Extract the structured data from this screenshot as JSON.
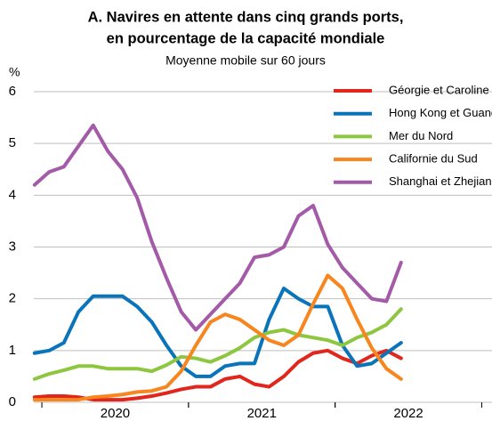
{
  "chart_data": {
    "type": "line",
    "title": [
      "A. Navires en attente dans cinq grands ports,",
      "en pourcentage de la capacité mondiale"
    ],
    "subtitle": "Moyenne mobile sur 60 jours",
    "y_label": "%",
    "x": [
      2019.95,
      2020.05,
      2020.15,
      2020.25,
      2020.35,
      2020.45,
      2020.55,
      2020.65,
      2020.75,
      2020.85,
      2020.95,
      2021.05,
      2021.15,
      2021.25,
      2021.35,
      2021.45,
      2021.55,
      2021.65,
      2021.75,
      2021.85,
      2021.95,
      2022.05,
      2022.15,
      2022.25,
      2022.35,
      2022.45
    ],
    "xlim": [
      2019.945,
      2023.07
    ],
    "xticks": [
      {
        "value": 2020,
        "label": "2020"
      },
      {
        "value": 2021,
        "label": "2021"
      },
      {
        "value": 2022,
        "label": "2022"
      }
    ],
    "ylim": [
      0,
      6
    ],
    "yticks": [
      0,
      1,
      2,
      3,
      4,
      5,
      6
    ],
    "grid": true,
    "legend": "upper right",
    "series": [
      {
        "name": "Géorgie et Caroline du Sud",
        "color": "#e1261c",
        "values": [
          0.1,
          0.12,
          0.12,
          0.1,
          0.05,
          0.05,
          0.05,
          0.08,
          0.12,
          0.18,
          0.25,
          0.3,
          0.3,
          0.45,
          0.5,
          0.35,
          0.3,
          0.5,
          0.78,
          0.95,
          1.0,
          0.85,
          0.75,
          0.9,
          1.0,
          0.85
        ]
      },
      {
        "name": "Hong Kong et Guangdong",
        "color": "#0a74ba",
        "values": [
          0.95,
          1.0,
          1.15,
          1.75,
          2.05,
          2.05,
          2.05,
          1.85,
          1.55,
          1.1,
          0.7,
          0.5,
          0.5,
          0.7,
          0.75,
          0.75,
          1.6,
          2.2,
          2.0,
          1.85,
          1.85,
          1.1,
          0.7,
          0.75,
          0.95,
          1.15
        ]
      },
      {
        "name": "Mer du Nord",
        "color": "#8dc63f",
        "values": [
          0.45,
          0.55,
          0.62,
          0.7,
          0.7,
          0.65,
          0.65,
          0.65,
          0.6,
          0.72,
          0.88,
          0.85,
          0.78,
          0.9,
          1.05,
          1.25,
          1.35,
          1.4,
          1.3,
          1.25,
          1.2,
          1.1,
          1.25,
          1.35,
          1.5,
          1.8
        ]
      },
      {
        "name": "Californie du Sud",
        "color": "#f7861f",
        "values": [
          0.05,
          0.05,
          0.05,
          0.05,
          0.1,
          0.12,
          0.15,
          0.2,
          0.22,
          0.3,
          0.6,
          1.1,
          1.55,
          1.7,
          1.6,
          1.4,
          1.2,
          1.1,
          1.3,
          1.9,
          2.45,
          2.2,
          1.6,
          1.05,
          0.65,
          0.45
        ]
      },
      {
        "name": "Shanghai et Zhejiang",
        "color": "#a35ba8",
        "values": [
          4.2,
          4.45,
          4.55,
          4.95,
          5.35,
          4.85,
          4.5,
          3.95,
          3.1,
          2.4,
          1.75,
          1.4,
          1.7,
          2.0,
          2.3,
          2.8,
          2.85,
          3.0,
          3.6,
          3.8,
          3.05,
          2.6,
          2.3,
          2.0,
          1.95,
          2.7
        ]
      }
    ]
  }
}
